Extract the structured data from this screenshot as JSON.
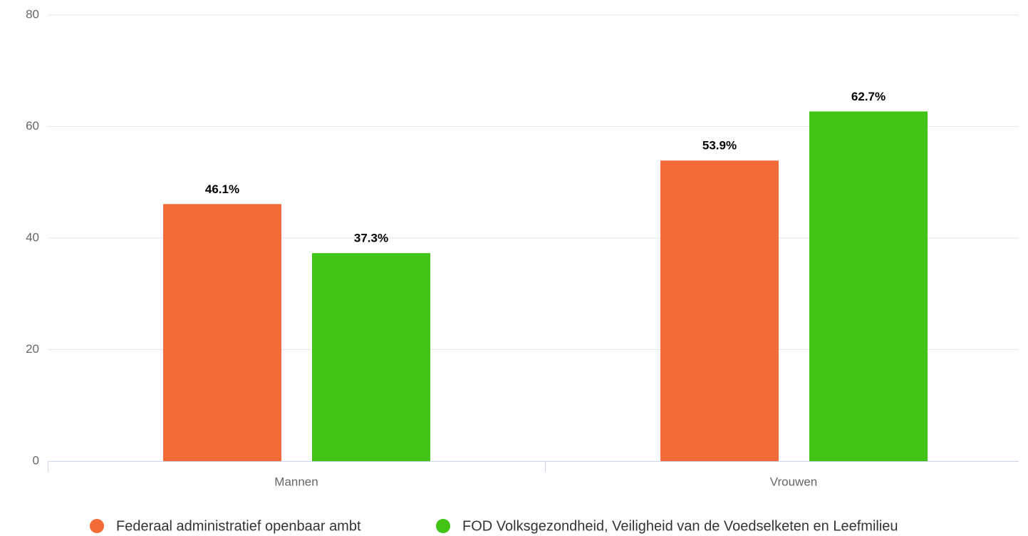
{
  "chart_data": {
    "type": "bar",
    "categories": [
      "Mannen",
      "Vrouwen"
    ],
    "series": [
      {
        "name": "Federaal administratief openbaar ambt",
        "color": "#f26b38",
        "values": [
          46.1,
          53.9
        ],
        "value_labels": [
          "46.1%",
          "53.9%"
        ]
      },
      {
        "name": "FOD Volksgezondheid, Veiligheid van de Voedselketen en Leefmilieu",
        "color": "#41c416",
        "values": [
          37.3,
          62.7
        ],
        "value_labels": [
          "37.3%",
          "62.7%"
        ]
      }
    ],
    "ylim": [
      0,
      80
    ],
    "yticks": [
      0,
      20,
      40,
      60,
      80
    ],
    "grid": true,
    "legend": "bottom"
  }
}
